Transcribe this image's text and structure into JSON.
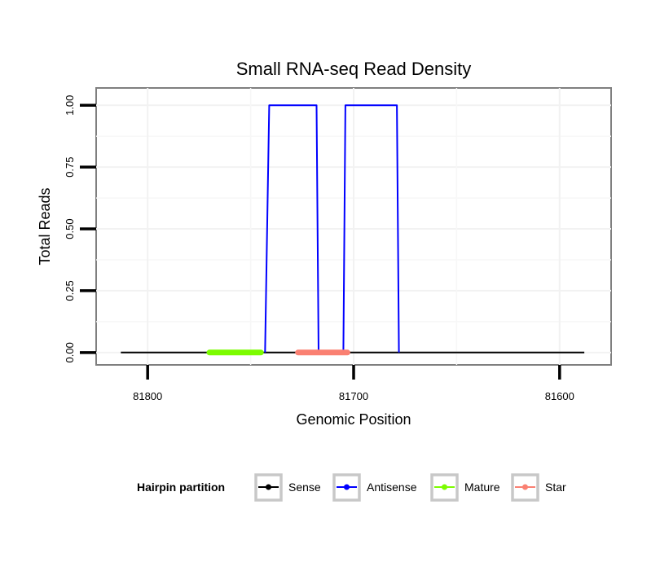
{
  "chart_data": {
    "type": "line",
    "title": "Small RNA-seq Read Density",
    "xlabel": "Genomic Position",
    "ylabel": "Total Reads",
    "xlim": [
      81825,
      81575
    ],
    "x_reversed": true,
    "ylim": [
      -0.05,
      1.07
    ],
    "xticks": [
      81800,
      81700,
      81600
    ],
    "xtick_labels": [
      "81800",
      "81700",
      "81600"
    ],
    "yticks": [
      0,
      0.25,
      0.5,
      0.75,
      1.0
    ],
    "ytick_labels": [
      "0.00",
      "0.25",
      "0.50",
      "0.75",
      "1.00"
    ],
    "grid": true,
    "legend": {
      "title": "Hairpin partition",
      "position": "bottom",
      "entries": [
        "Sense",
        "Antisense",
        "Mature",
        "Star"
      ]
    },
    "series": [
      {
        "name": "Sense",
        "color": "#000000",
        "x": [
          81813,
          81588
        ],
        "y": [
          0,
          0
        ]
      },
      {
        "name": "Antisense",
        "color": "#0000ff",
        "x": [
          81743,
          81741,
          81718,
          81717,
          81705,
          81704,
          81679,
          81678
        ],
        "y": [
          0,
          1,
          1,
          0,
          0,
          1,
          1,
          0
        ]
      },
      {
        "name": "Mature",
        "color": "#7cfc00",
        "x": [
          81770,
          81745
        ],
        "y": [
          0,
          0
        ]
      },
      {
        "name": "Star",
        "color": "#fa8072",
        "x": [
          81727,
          81703
        ],
        "y": [
          0,
          0
        ]
      }
    ]
  }
}
